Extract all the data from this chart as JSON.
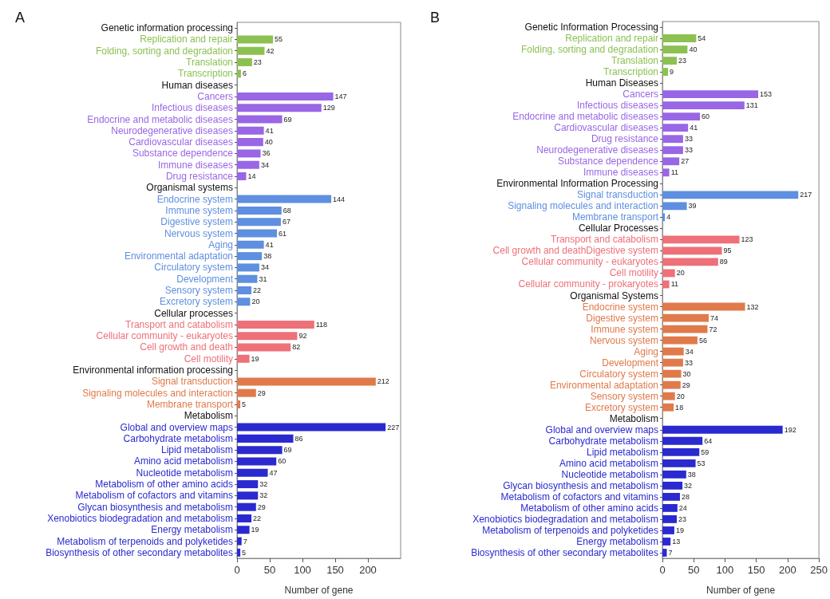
{
  "chart_data": [
    {
      "type": "bar",
      "orientation": "horizontal",
      "title": "A",
      "xlabel": "Number of gene",
      "xlim": [
        0,
        250
      ],
      "xticks": [
        0,
        50,
        100,
        150,
        200
      ],
      "data_labels": true,
      "categories": [
        "Genetic information processing",
        "Replication and repair",
        "Folding, sorting and degradation",
        "Translation",
        "Transcription",
        "Human diseases",
        "Cancers",
        "Infectious diseases",
        "Endocrine and metabolic diseases",
        "Neurodegenerative diseases",
        "Cardiovascular diseases",
        "Substance dependence",
        "Immune diseases",
        "Drug resistance",
        "Organismal systems",
        "Endocrine system",
        "Immune system",
        "Digestive system",
        "Nervous system",
        "Aging",
        "Environmental adaptation",
        "Circulatory system",
        "Development",
        "Sensory system",
        "Excretory system",
        "Cellular processes",
        "Transport and catabolism",
        "Cellular community - eukaryotes",
        "Cell growth and death",
        "Cell motility",
        "Environmental information processing",
        "Signal transduction",
        "Signaling molecules and interaction",
        "Membrane transport",
        "Metabolism",
        "Global and overview maps",
        "Carbohydrate metabolism",
        "Lipid metabolism",
        "Amino acid metabolism",
        "Nucleotide metabolism",
        "Metabolism of other amino acids",
        "Metabolism of cofactors and vitamins",
        "Glycan biosynthesis and metabolism",
        "Xenobiotics biodegradation and metabolism",
        "Energy metabolism",
        "Metabolism of terpenoids and polyketides",
        "Biosynthesis of other secondary metabolites"
      ],
      "values": [
        null,
        55,
        42,
        23,
        6,
        null,
        147,
        129,
        69,
        41,
        40,
        36,
        34,
        14,
        null,
        144,
        68,
        67,
        61,
        41,
        38,
        34,
        31,
        22,
        20,
        null,
        118,
        92,
        82,
        19,
        null,
        212,
        29,
        5,
        null,
        227,
        86,
        69,
        60,
        47,
        32,
        32,
        29,
        22,
        19,
        7,
        5
      ],
      "colors": [
        null,
        "#8cc152",
        "#8cc152",
        "#8cc152",
        "#8cc152",
        null,
        "#9966e6",
        "#9966e6",
        "#9966e6",
        "#9966e6",
        "#9966e6",
        "#9966e6",
        "#9966e6",
        "#9966e6",
        null,
        "#5e8fe0",
        "#5e8fe0",
        "#5e8fe0",
        "#5e8fe0",
        "#5e8fe0",
        "#5e8fe0",
        "#5e8fe0",
        "#5e8fe0",
        "#5e8fe0",
        "#5e8fe0",
        null,
        "#ee7079",
        "#ee7079",
        "#ee7079",
        "#ee7079",
        null,
        "#e07a4a",
        "#e07a4a",
        "#e07a4a",
        null,
        "#2a2ad0",
        "#2a2ad0",
        "#2a2ad0",
        "#2a2ad0",
        "#2a2ad0",
        "#2a2ad0",
        "#2a2ad0",
        "#2a2ad0",
        "#2a2ad0",
        "#2a2ad0",
        "#2a2ad0",
        "#2a2ad0"
      ]
    },
    {
      "type": "bar",
      "orientation": "horizontal",
      "title": "B",
      "xlabel": "Number of gene",
      "xlim": [
        0,
        250
      ],
      "xticks": [
        0,
        50,
        100,
        150,
        200,
        250
      ],
      "data_labels": true,
      "categories": [
        "Genetic Information Processing",
        "Replication and repair",
        "Folding, sorting and degradation",
        "Translation",
        "Transcription",
        "Human Diseases",
        "Cancers",
        "Infectious diseases",
        "Endocrine and metabolic diseases",
        "Cardiovascular diseases",
        "Drug resistance",
        "Neurodegenerative diseases",
        "Substance dependence",
        "Immune diseases",
        "Environmental Information Processing",
        "Signal transduction",
        "Signaling molecules and interaction",
        "Membrane transport",
        "Cellular Processes",
        "Transport and catabolism",
        "Cell growth and deathDigestive system",
        "Cellular community - eukaryotes",
        "Cell motility",
        "Cellular community - prokaryotes",
        "Organismal Systems",
        "Endocrine system",
        "Digestive system",
        "Immune system",
        "Nervous system",
        "Aging",
        "Development",
        "Circulatory system",
        "Environmental adaptation",
        "Sensory system",
        "Excretory system",
        "Metabolism",
        "Global and overview maps",
        "Carbohydrate metabolism",
        "Lipid metabolism",
        "Amino acid metabolism",
        "Nucleotide metabolism",
        "Glycan biosynthesis and metabolism",
        "Metabolism of cofactors and vitamins",
        "Metabolism of other amino acids",
        "Xenobiotics biodegradation and metabolism",
        "Metabolism of terpenoids and polyketides",
        "Energy metabolism",
        "Biosynthesis of other secondary metabolites"
      ],
      "values": [
        null,
        54,
        40,
        23,
        9,
        null,
        153,
        131,
        60,
        41,
        33,
        33,
        27,
        11,
        null,
        217,
        39,
        4,
        null,
        123,
        95,
        89,
        20,
        11,
        null,
        132,
        74,
        72,
        56,
        34,
        33,
        30,
        29,
        20,
        18,
        null,
        192,
        64,
        59,
        53,
        38,
        32,
        28,
        24,
        23,
        19,
        13,
        7
      ],
      "colors": [
        null,
        "#8cc152",
        "#8cc152",
        "#8cc152",
        "#8cc152",
        null,
        "#9966e6",
        "#9966e6",
        "#9966e6",
        "#9966e6",
        "#9966e6",
        "#9966e6",
        "#9966e6",
        "#9966e6",
        null,
        "#5e8fe0",
        "#5e8fe0",
        "#5e8fe0",
        null,
        "#ee7079",
        "#ee7079",
        "#ee7079",
        "#ee7079",
        "#ee7079",
        null,
        "#e07a4a",
        "#e07a4a",
        "#e07a4a",
        "#e07a4a",
        "#e07a4a",
        "#e07a4a",
        "#e07a4a",
        "#e07a4a",
        "#e07a4a",
        "#e07a4a",
        null,
        "#2a2ad0",
        "#2a2ad0",
        "#2a2ad0",
        "#2a2ad0",
        "#2a2ad0",
        "#2a2ad0",
        "#2a2ad0",
        "#2a2ad0",
        "#2a2ad0",
        "#2a2ad0",
        "#2a2ad0",
        "#2a2ad0"
      ]
    }
  ]
}
